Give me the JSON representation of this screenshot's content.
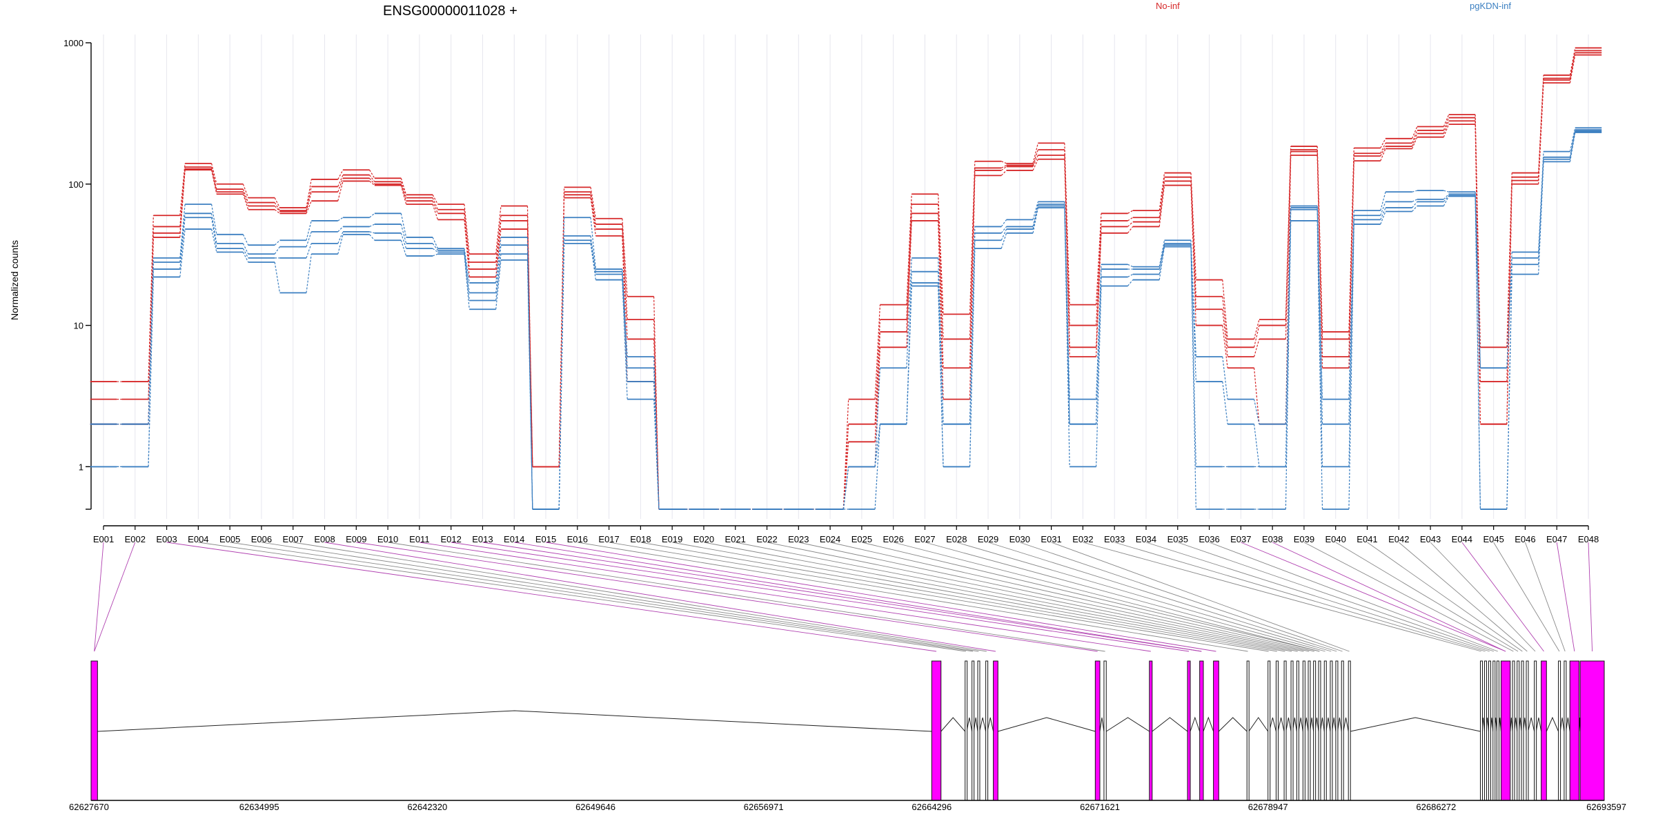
{
  "chart_data": {
    "type": "line",
    "title": "ENSG00000011028 +",
    "ylabel": "Normalized counts",
    "y_scale": "log",
    "ylim": [
      0.5,
      1000
    ],
    "y_ticks": [
      "1",
      "10",
      "100",
      "1000"
    ],
    "colors": {
      "No-inf": "#d62728",
      "pgKDN-inf": "#3b7fc1",
      "exon": "#ff00ff",
      "connector_alt": "#b040b0"
    },
    "categories": [
      "E001",
      "E002",
      "E003",
      "E004",
      "E005",
      "E006",
      "E007",
      "E008",
      "E009",
      "E010",
      "E011",
      "E012",
      "E013",
      "E014",
      "E015",
      "E016",
      "E017",
      "E018",
      "E019",
      "E020",
      "E021",
      "E022",
      "E023",
      "E024",
      "E025",
      "E026",
      "E027",
      "E028",
      "E029",
      "E030",
      "E031",
      "E032",
      "E033",
      "E034",
      "E035",
      "E036",
      "E037",
      "E038",
      "E039",
      "E040",
      "E041",
      "E042",
      "E043",
      "E044",
      "E045",
      "E046",
      "E047",
      "E048"
    ],
    "series": [
      {
        "name": "No-inf",
        "group": "No-inf",
        "values": [
          4,
          4,
          60,
          140,
          100,
          80,
          68,
          108,
          126,
          110,
          84,
          72,
          32,
          70,
          1,
          95,
          57,
          16,
          0.5,
          0.5,
          0.5,
          0.5,
          0.5,
          0.5,
          3,
          14,
          85,
          12,
          145,
          140,
          195,
          14,
          62,
          65,
          120,
          21,
          8,
          11,
          185,
          9,
          180,
          210,
          255,
          310,
          7,
          120,
          590,
          920
        ]
      },
      {
        "name": "No-inf",
        "group": "No-inf",
        "values": [
          3,
          3,
          50,
          132,
          92,
          74,
          65,
          96,
          116,
          104,
          80,
          66,
          28,
          60,
          1,
          88,
          52,
          11,
          0.5,
          0.5,
          0.5,
          0.5,
          0.5,
          0.5,
          2,
          11,
          72,
          8,
          130,
          136,
          175,
          10,
          55,
          58,
          112,
          16,
          7,
          10,
          175,
          8,
          165,
          195,
          240,
          295,
          4,
          112,
          560,
          880
        ]
      },
      {
        "name": "No-inf",
        "group": "No-inf",
        "values": [
          2,
          2,
          45,
          128,
          88,
          70,
          64,
          88,
          110,
          100,
          76,
          62,
          25,
          55,
          1,
          84,
          48,
          8,
          0.5,
          0.5,
          0.5,
          0.5,
          0.5,
          0.5,
          1.5,
          9,
          62,
          5,
          125,
          133,
          160,
          7,
          50,
          54,
          105,
          13,
          6,
          8,
          170,
          6,
          158,
          185,
          228,
          280,
          2,
          106,
          545,
          850
        ]
      },
      {
        "name": "No-inf",
        "group": "No-inf",
        "values": [
          2,
          2,
          42,
          126,
          85,
          66,
          62,
          76,
          105,
          98,
          72,
          56,
          22,
          48,
          1,
          80,
          43,
          4,
          0.5,
          0.5,
          0.5,
          0.5,
          0.5,
          0.5,
          1,
          7,
          55,
          3,
          115,
          125,
          150,
          6,
          45,
          50,
          98,
          10,
          5,
          2,
          160,
          5,
          146,
          178,
          215,
          265,
          2,
          100,
          520,
          820
        ]
      },
      {
        "name": "pgKDN-inf",
        "group": "pgKDN-inf",
        "values": [
          2,
          2,
          30,
          72,
          44,
          37,
          40,
          55,
          58,
          62,
          42,
          35,
          20,
          42,
          0.5,
          58,
          25,
          6,
          0.5,
          0.5,
          0.5,
          0.5,
          0.5,
          0.5,
          1,
          5,
          30,
          2,
          50,
          56,
          75,
          3,
          27,
          26,
          40,
          6,
          3,
          2,
          70,
          3,
          65,
          88,
          90,
          88,
          5,
          33,
          170,
          250
        ]
      },
      {
        "name": "pgKDN-inf",
        "group": "pgKDN-inf",
        "values": [
          2,
          2,
          28,
          62,
          38,
          32,
          36,
          46,
          50,
          52,
          38,
          34,
          17,
          37,
          0.5,
          43,
          24,
          5,
          0.5,
          0.5,
          0.5,
          0.5,
          0.5,
          0.5,
          1,
          2,
          24,
          2,
          45,
          50,
          72,
          2,
          25,
          25,
          38,
          4,
          2,
          1,
          68,
          2,
          60,
          75,
          78,
          85,
          5,
          30,
          155,
          242
        ]
      },
      {
        "name": "pgKDN-inf",
        "group": "pgKDN-inf",
        "values": [
          1,
          1,
          25,
          58,
          35,
          30,
          30,
          38,
          46,
          45,
          35,
          33,
          15,
          32,
          0.5,
          40,
          23,
          4,
          0.5,
          0.5,
          0.5,
          0.5,
          0.5,
          0.5,
          1,
          2,
          20,
          1,
          40,
          48,
          70,
          2,
          22,
          23,
          37,
          1,
          1,
          1,
          66,
          1,
          56,
          68,
          75,
          83,
          0.5,
          27,
          150,
          237
        ]
      },
      {
        "name": "pgKDN-inf",
        "group": "pgKDN-inf",
        "values": [
          1,
          1,
          22,
          48,
          33,
          28,
          17,
          32,
          44,
          40,
          31,
          32,
          13,
          29,
          0.5,
          38,
          21,
          3,
          0.5,
          0.5,
          0.5,
          0.5,
          0.5,
          0.5,
          0.5,
          2,
          19,
          1,
          35,
          45,
          68,
          1,
          19,
          21,
          36,
          0.5,
          0.5,
          0.5,
          55,
          0.5,
          52,
          64,
          70,
          82,
          0.5,
          23,
          144,
          232
        ]
      }
    ],
    "legend": [
      "No-inf",
      "pgKDN-inf"
    ],
    "legend_position": "top-right",
    "grid": "vertical-per-exon",
    "gene_model": {
      "coord_range": [
        62627670,
        62693597
      ],
      "axis_ticks": [
        "62627670",
        "62634995",
        "62642320",
        "62649646",
        "62656971",
        "62664296",
        "62671621",
        "62678947",
        "62686272",
        "62693597"
      ],
      "exons": [
        {
          "start": 62627670,
          "end": 62627950,
          "tested": true
        },
        {
          "start": 62664296,
          "end": 62664700,
          "tested": true
        },
        {
          "start": 62665750,
          "end": 62665820,
          "tested": false
        },
        {
          "start": 62666050,
          "end": 62666130,
          "tested": false
        },
        {
          "start": 62666300,
          "end": 62666380,
          "tested": false
        },
        {
          "start": 62666650,
          "end": 62666720,
          "tested": false
        },
        {
          "start": 62666980,
          "end": 62667180,
          "tested": true
        },
        {
          "start": 62671421,
          "end": 62671621,
          "tested": true
        },
        {
          "start": 62671800,
          "end": 62671900,
          "tested": false
        },
        {
          "start": 62673780,
          "end": 62673900,
          "tested": true
        },
        {
          "start": 62675440,
          "end": 62675560,
          "tested": true
        },
        {
          "start": 62675970,
          "end": 62676130,
          "tested": true
        },
        {
          "start": 62676570,
          "end": 62676800,
          "tested": true
        },
        {
          "start": 62678030,
          "end": 62678110,
          "tested": false
        },
        {
          "start": 62678947,
          "end": 62679000,
          "tested": false
        },
        {
          "start": 62679300,
          "end": 62679380,
          "tested": false
        },
        {
          "start": 62679650,
          "end": 62679730,
          "tested": false
        },
        {
          "start": 62679950,
          "end": 62680020,
          "tested": false
        },
        {
          "start": 62680200,
          "end": 62680280,
          "tested": false
        },
        {
          "start": 62680470,
          "end": 62680540,
          "tested": false
        },
        {
          "start": 62680700,
          "end": 62680780,
          "tested": false
        },
        {
          "start": 62680930,
          "end": 62681000,
          "tested": false
        },
        {
          "start": 62681150,
          "end": 62681230,
          "tested": false
        },
        {
          "start": 62681400,
          "end": 62681480,
          "tested": false
        },
        {
          "start": 62681660,
          "end": 62681740,
          "tested": false
        },
        {
          "start": 62681900,
          "end": 62681980,
          "tested": false
        },
        {
          "start": 62682150,
          "end": 62682230,
          "tested": false
        },
        {
          "start": 62682450,
          "end": 62682530,
          "tested": false
        },
        {
          "start": 62688200,
          "end": 62688270,
          "tested": false
        },
        {
          "start": 62688380,
          "end": 62688450,
          "tested": false
        },
        {
          "start": 62688560,
          "end": 62688640,
          "tested": false
        },
        {
          "start": 62688750,
          "end": 62688820,
          "tested": false
        },
        {
          "start": 62688920,
          "end": 62689000,
          "tested": false
        },
        {
          "start": 62689100,
          "end": 62689500,
          "tested": true
        },
        {
          "start": 62689600,
          "end": 62689680,
          "tested": false
        },
        {
          "start": 62689800,
          "end": 62689880,
          "tested": false
        },
        {
          "start": 62689990,
          "end": 62690070,
          "tested": false
        },
        {
          "start": 62690200,
          "end": 62690280,
          "tested": false
        },
        {
          "start": 62690550,
          "end": 62690630,
          "tested": false
        },
        {
          "start": 62690850,
          "end": 62691080,
          "tested": true
        },
        {
          "start": 62691600,
          "end": 62691680,
          "tested": false
        },
        {
          "start": 62691850,
          "end": 62691930,
          "tested": false
        },
        {
          "start": 62692100,
          "end": 62692500,
          "tested": true
        },
        {
          "start": 62692550,
          "end": 62693597,
          "tested": true
        }
      ]
    }
  }
}
